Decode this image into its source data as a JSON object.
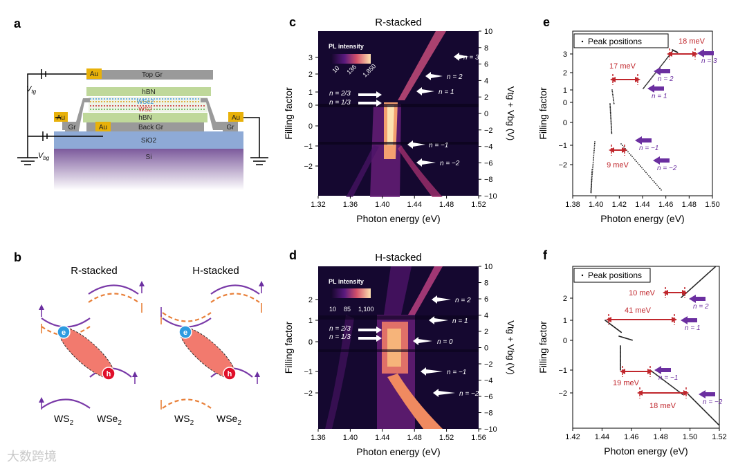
{
  "panels": {
    "a": "a",
    "b": "b",
    "c": "c",
    "d": "d",
    "e": "e",
    "f": "f"
  },
  "device": {
    "layers": [
      "Top Gr",
      "hBN",
      "WSe2",
      "WS2",
      "hBN",
      "Back Gr",
      "SiO2",
      "Si"
    ],
    "au": "Au",
    "gr": "Gr",
    "vtg": "V",
    "vtg_sub": "tg",
    "vbg": "V",
    "vbg_sub": "bg"
  },
  "exciton": {
    "left_title": "R-stacked",
    "right_title": "H-stacked",
    "ws2": "WS",
    "wse2": "WSe",
    "sub2": "2",
    "e": "e",
    "h": "h"
  },
  "colors": {
    "map_dark": "#120629",
    "map_mid": "#7a1f8a",
    "map_bright": "#fbd29a",
    "arrow": "#6b2fa0",
    "mev": "#c0262c",
    "orange": "#e8803a"
  },
  "chart_data": [
    {
      "type": "heatmap",
      "panel": "c",
      "title": "R-stacked",
      "xlabel": "Photon energy (eV)",
      "ylabel": "Filling factor",
      "y2label": "V_tg + V_bg (V)",
      "xlim": [
        1.32,
        1.52
      ],
      "xticks": [
        "1.32",
        "1.36",
        "1.40",
        "1.44",
        "1.48",
        "1.52"
      ],
      "yticks": [
        "3",
        "2",
        "1",
        "0",
        "0",
        "−1",
        "−2"
      ],
      "y2ticks": [
        "10",
        "8",
        "6",
        "4",
        "2",
        "0",
        "−2",
        "−4",
        "−6",
        "−8",
        "−10"
      ],
      "colorbar": {
        "label": "PL intensity",
        "ticks": [
          "10",
          "136",
          "1,850"
        ]
      },
      "annotations": [
        "n = 3",
        "n = 2",
        "n = 1",
        "n = −1",
        "n = −2",
        "n = 2/3",
        "n = 1/3"
      ]
    },
    {
      "type": "heatmap",
      "panel": "d",
      "title": "H-stacked",
      "xlabel": "Photon energy (eV)",
      "ylabel": "Filling factor",
      "y2label": "V_tg + V_bg (V)",
      "xlim": [
        1.36,
        1.56
      ],
      "xticks": [
        "1.36",
        "1.40",
        "1.44",
        "1.48",
        "1.52",
        "1.56"
      ],
      "yticks": [
        "2",
        "1",
        "0",
        "0",
        "−1",
        "−2"
      ],
      "y2ticks": [
        "10",
        "8",
        "6",
        "4",
        "2",
        "0",
        "−2",
        "−4",
        "−6",
        "−8",
        "−10"
      ],
      "colorbar": {
        "label": "PL intensity",
        "ticks": [
          "10",
          "85",
          "1,100"
        ]
      },
      "annotations": [
        "n = 2",
        "n = 1",
        "n = 0",
        "n = −1",
        "n = −2",
        "n = 2/3",
        "n = 1/3"
      ]
    },
    {
      "type": "scatter",
      "panel": "e",
      "legend": "Peak positions",
      "xlabel": "Photon energy (eV)",
      "ylabel": "Filling factor",
      "xlim": [
        1.38,
        1.5
      ],
      "xticks": [
        "1.38",
        "1.40",
        "1.42",
        "1.44",
        "1.46",
        "1.48",
        "1.50"
      ],
      "yticks": [
        "3",
        "2",
        "1",
        "0",
        "0",
        "−1",
        "−2"
      ],
      "annotations": [
        "n = 3",
        "n = 2",
        "n = 1",
        "n = −1",
        "n = −2"
      ],
      "gaps": [
        "18 meV",
        "17 meV",
        "9 meV"
      ]
    },
    {
      "type": "scatter",
      "panel": "f",
      "legend": "Peak positions",
      "xlabel": "Photon energy (eV)",
      "ylabel": "Filling factor",
      "xlim": [
        1.42,
        1.52
      ],
      "xticks": [
        "1.42",
        "1.44",
        "1.46",
        "1.48",
        "1.50",
        "1.52"
      ],
      "yticks": [
        "2",
        "1",
        "0",
        "−1",
        "−2"
      ],
      "annotations": [
        "n = 2",
        "n = 1",
        "n = −1",
        "n = −2"
      ],
      "gaps": [
        "10 meV",
        "41 meV",
        "19 meV",
        "18 meV"
      ]
    }
  ],
  "watermark": "大数跨境"
}
